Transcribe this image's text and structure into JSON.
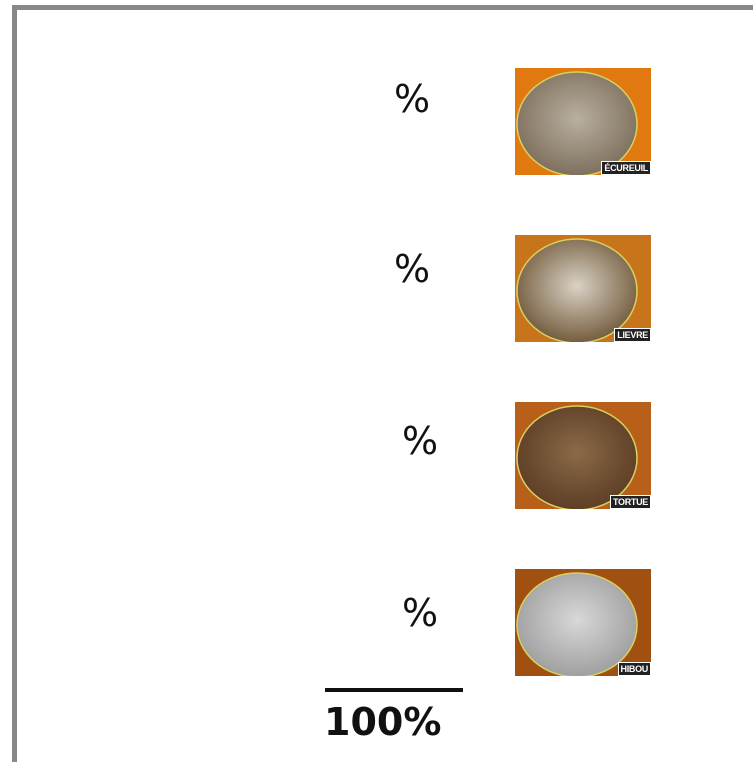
{
  "rows": [
    {
      "percent": "%",
      "label": "ÉCUREUIL"
    },
    {
      "percent": "%",
      "label": "LIEVRE"
    },
    {
      "percent": "%",
      "label": "TORTUE"
    },
    {
      "percent": "%",
      "label": "HIBOU"
    }
  ],
  "total": "100%"
}
